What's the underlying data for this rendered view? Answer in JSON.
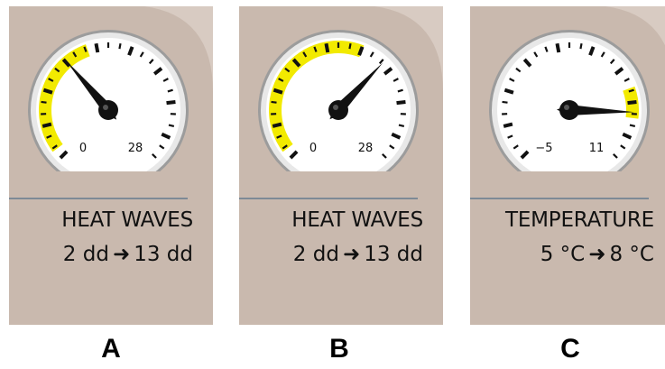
{
  "panels": [
    {
      "letter": "A",
      "title": "HEAT WAVES",
      "from": "2 dd",
      "to": "13 dd",
      "arrow": "➜",
      "gauge": {
        "min_label": "0",
        "max_label": "28",
        "needle_fraction": 0.35,
        "highlight_fraction": [
          0.03,
          0.43
        ]
      }
    },
    {
      "letter": "B",
      "title": "HEAT WAVES",
      "from": "2 dd",
      "to": "13 dd",
      "arrow": "➜",
      "gauge": {
        "min_label": "0",
        "max_label": "28",
        "needle_fraction": 0.66,
        "highlight_fraction": [
          0.03,
          0.58
        ]
      }
    },
    {
      "letter": "C",
      "title": "TEMPERATURE",
      "from": "5 °C",
      "to": "8 °C",
      "arrow": "➜",
      "gauge": {
        "min_label": "−5",
        "max_label": "11",
        "needle_fraction": 0.84,
        "highlight_fraction": [
          0.76,
          0.86
        ]
      }
    }
  ],
  "colors": {
    "panel_bg": "#c9b9ae",
    "highlight": "#f2ea00",
    "divider": "#7d8a96",
    "needle": "#111111"
  }
}
